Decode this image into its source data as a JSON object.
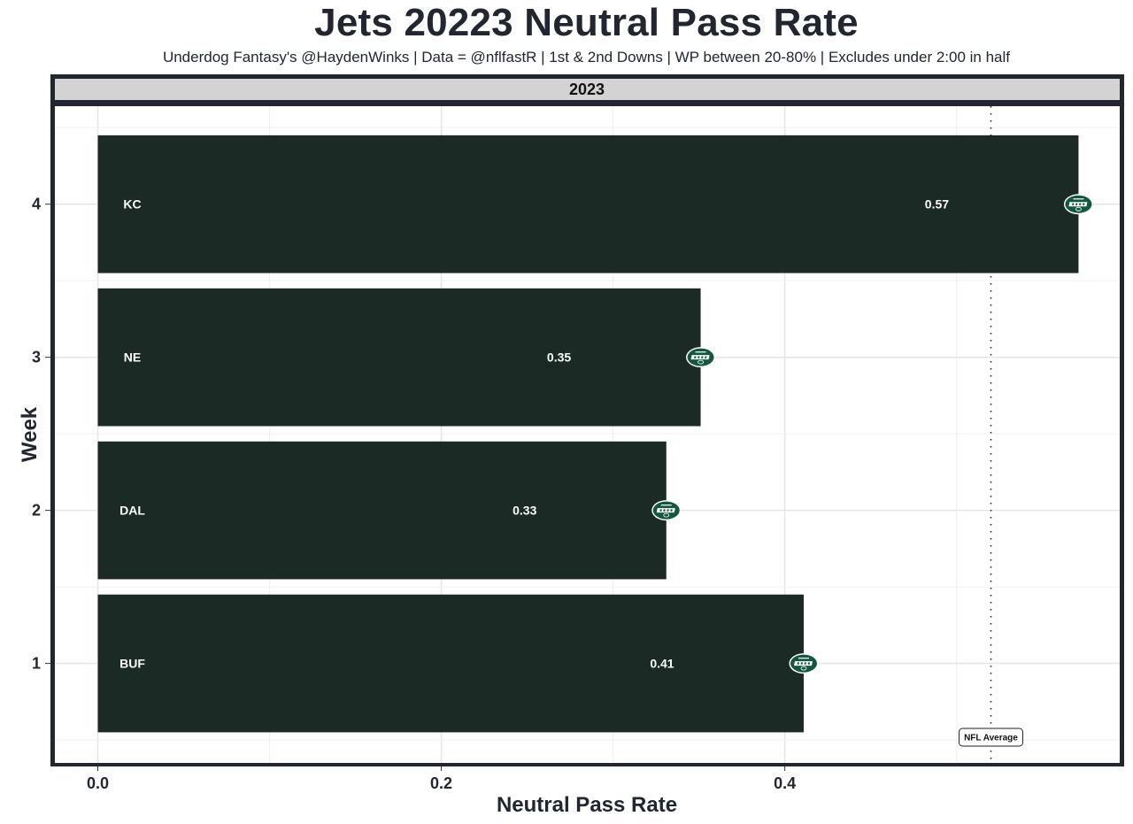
{
  "chart_data": {
    "type": "bar",
    "orientation": "horizontal",
    "title": "Jets 20223 Neutral Pass Rate",
    "subtitle": "Underdog Fantasy's @HaydenWinks | Data = @nflfastR | 1st & 2nd Downs | WP between 20-80% | Excludes under 2:00 in half",
    "facet_label": "2023",
    "xlabel": "Neutral Pass Rate",
    "ylabel": "Week",
    "xlim": [
      -0.025,
      0.595
    ],
    "ylim": [
      0.35,
      4.64
    ],
    "x_ticks": [
      0.0,
      0.2,
      0.4
    ],
    "x_tick_labels": [
      "0.0",
      "0.2",
      "0.4"
    ],
    "y_ticks": [
      1,
      2,
      3,
      4
    ],
    "y_tick_labels": [
      "1",
      "2",
      "3",
      "4"
    ],
    "grid": true,
    "bar_color": "#1c2a25",
    "logo_color": "#125740",
    "categories": [
      "1",
      "2",
      "3",
      "4"
    ],
    "opponents": [
      "BUF",
      "DAL",
      "NE",
      "KC"
    ],
    "values": [
      0.411,
      0.331,
      0.351,
      0.571
    ],
    "value_labels": [
      "0.41",
      "0.33",
      "0.35",
      "0.57"
    ],
    "team_logo": "jets-logo",
    "reference_line": {
      "label": "NFL Average",
      "value": 0.52,
      "style": "dotted"
    }
  }
}
